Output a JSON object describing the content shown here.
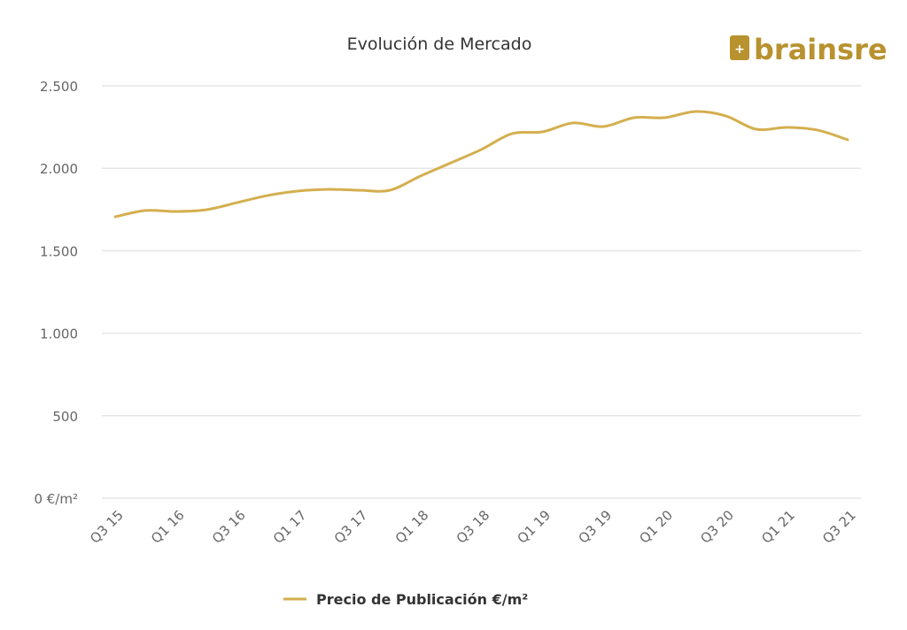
{
  "brand": {
    "logo_text": "brainsre"
  },
  "chart_data": {
    "type": "line",
    "title": "Evolución de Mercado",
    "xlabel": "",
    "ylabel": "",
    "ylim": [
      0,
      2500
    ],
    "y_ticks": [
      0,
      500,
      1000,
      1500,
      2000,
      2500
    ],
    "y_tick_labels": [
      "0 €/m²",
      "500",
      "1.000",
      "1.500",
      "2.000",
      "2.500"
    ],
    "grid": true,
    "legend_position": "bottom",
    "x": [
      "Q3 15",
      "Q4 15",
      "Q1 16",
      "Q2 16",
      "Q3 16",
      "Q4 16",
      "Q1 17",
      "Q2 17",
      "Q3 17",
      "Q4 17",
      "Q1 18",
      "Q2 18",
      "Q3 18",
      "Q4 18",
      "Q1 19",
      "Q2 19",
      "Q3 19",
      "Q4 19",
      "Q1 20",
      "Q2 20",
      "Q3 20",
      "Q4 20",
      "Q1 21",
      "Q2 21",
      "Q3 21"
    ],
    "x_tick_labels": [
      "Q3 15",
      "Q1 16",
      "Q3 16",
      "Q1 17",
      "Q3 17",
      "Q1 18",
      "Q3 18",
      "Q1 19",
      "Q3 19",
      "Q1 20",
      "Q3 20",
      "Q1 21",
      "Q3 21"
    ],
    "series": [
      {
        "name": "Precio de Publicación €/m²",
        "color": "#d4af4f",
        "values": [
          1706,
          1744,
          1738,
          1749,
          1792,
          1835,
          1862,
          1872,
          1867,
          1867,
          1953,
          2033,
          2114,
          2210,
          2221,
          2275,
          2253,
          2307,
          2307,
          2344,
          2318,
          2237,
          2248,
          2232,
          2173
        ]
      }
    ]
  }
}
